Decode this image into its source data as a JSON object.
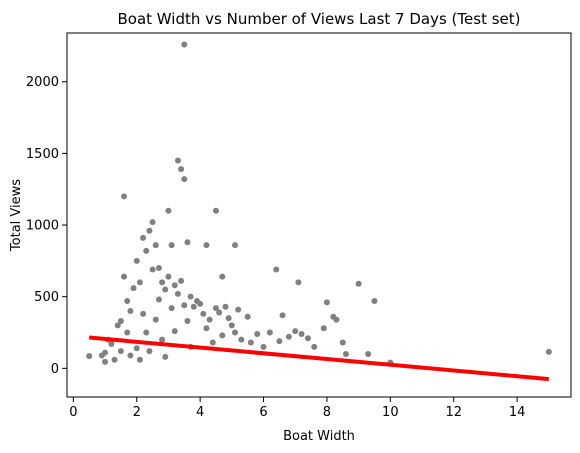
{
  "chart_data": {
    "type": "scatter",
    "title": "Boat Width vs Number of Views Last 7 Days (Test set)",
    "xlabel": "Boat Width",
    "ylabel": "Total Views",
    "xlim": [
      -0.2,
      15.7
    ],
    "ylim": [
      -200,
      2340
    ],
    "xticks": [
      0,
      2,
      4,
      6,
      8,
      10,
      12,
      14
    ],
    "yticks": [
      0,
      500,
      1000,
      1500,
      2000
    ],
    "grid": false,
    "legend": "none",
    "marker_color": "#808080",
    "line_color": "#ff0000",
    "series": [
      {
        "kind": "points",
        "points": [
          [
            0.5,
            85
          ],
          [
            0.9,
            90
          ],
          [
            1.0,
            110
          ],
          [
            1.0,
            45
          ],
          [
            1.1,
            200
          ],
          [
            1.2,
            170
          ],
          [
            1.3,
            60
          ],
          [
            1.4,
            300
          ],
          [
            1.5,
            330
          ],
          [
            1.5,
            120
          ],
          [
            1.6,
            1200
          ],
          [
            1.6,
            640
          ],
          [
            1.7,
            470
          ],
          [
            1.7,
            250
          ],
          [
            1.8,
            400
          ],
          [
            1.8,
            90
          ],
          [
            1.9,
            560
          ],
          [
            2.0,
            750
          ],
          [
            2.0,
            140
          ],
          [
            2.1,
            600
          ],
          [
            2.1,
            60
          ],
          [
            2.2,
            910
          ],
          [
            2.2,
            380
          ],
          [
            2.3,
            820
          ],
          [
            2.3,
            250
          ],
          [
            2.4,
            960
          ],
          [
            2.4,
            120
          ],
          [
            2.5,
            1020
          ],
          [
            2.5,
            690
          ],
          [
            2.6,
            860
          ],
          [
            2.6,
            340
          ],
          [
            2.7,
            700
          ],
          [
            2.7,
            480
          ],
          [
            2.8,
            600
          ],
          [
            2.8,
            200
          ],
          [
            2.9,
            550
          ],
          [
            2.9,
            80
          ],
          [
            3.0,
            1100
          ],
          [
            3.0,
            640
          ],
          [
            3.1,
            860
          ],
          [
            3.1,
            420
          ],
          [
            3.2,
            580
          ],
          [
            3.2,
            260
          ],
          [
            3.3,
            1450
          ],
          [
            3.3,
            520
          ],
          [
            3.4,
            1390
          ],
          [
            3.4,
            610
          ],
          [
            3.5,
            2260
          ],
          [
            3.5,
            1320
          ],
          [
            3.5,
            440
          ],
          [
            3.6,
            880
          ],
          [
            3.6,
            330
          ],
          [
            3.7,
            500
          ],
          [
            3.7,
            150
          ],
          [
            3.8,
            430
          ],
          [
            3.9,
            470
          ],
          [
            4.0,
            450
          ],
          [
            4.1,
            380
          ],
          [
            4.2,
            860
          ],
          [
            4.2,
            280
          ],
          [
            4.3,
            340
          ],
          [
            4.4,
            180
          ],
          [
            4.5,
            1100
          ],
          [
            4.5,
            420
          ],
          [
            4.6,
            390
          ],
          [
            4.7,
            640
          ],
          [
            4.7,
            230
          ],
          [
            4.8,
            430
          ],
          [
            4.9,
            350
          ],
          [
            5.0,
            300
          ],
          [
            5.1,
            860
          ],
          [
            5.1,
            250
          ],
          [
            5.2,
            410
          ],
          [
            5.3,
            200
          ],
          [
            5.5,
            360
          ],
          [
            5.6,
            180
          ],
          [
            5.8,
            240
          ],
          [
            6.0,
            150
          ],
          [
            6.2,
            250
          ],
          [
            6.4,
            690
          ],
          [
            6.5,
            190
          ],
          [
            6.6,
            370
          ],
          [
            6.8,
            220
          ],
          [
            7.0,
            260
          ],
          [
            7.1,
            600
          ],
          [
            7.2,
            240
          ],
          [
            7.4,
            210
          ],
          [
            7.6,
            150
          ],
          [
            7.9,
            280
          ],
          [
            8.0,
            460
          ],
          [
            8.2,
            360
          ],
          [
            8.3,
            340
          ],
          [
            8.5,
            180
          ],
          [
            8.6,
            100
          ],
          [
            9.0,
            590
          ],
          [
            9.3,
            100
          ],
          [
            9.5,
            470
          ],
          [
            10.0,
            40
          ],
          [
            15.0,
            115
          ]
        ]
      },
      {
        "kind": "fit-line",
        "points": [
          [
            0.5,
            215
          ],
          [
            15.0,
            -75
          ]
        ]
      }
    ]
  }
}
